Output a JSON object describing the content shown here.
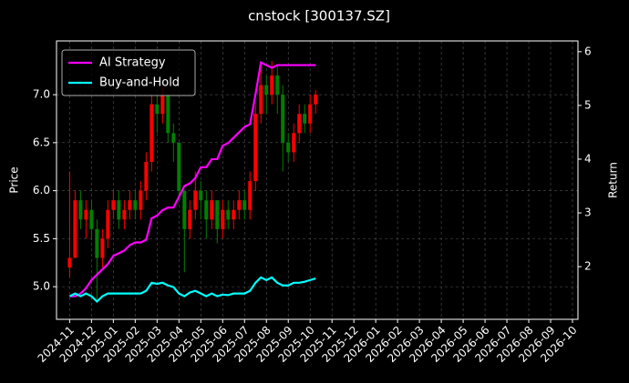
{
  "chart_data": {
    "type": "candlestick",
    "title": "cnstock [300137.SZ]",
    "ylabel": "Price",
    "y2label": "Return",
    "xlim": [
      -0.6,
      23.25
    ],
    "xticks": [
      {
        "value": 0,
        "label": "2024-11"
      },
      {
        "value": 1,
        "label": "2024-12"
      },
      {
        "value": 2,
        "label": "2025-01"
      },
      {
        "value": 3,
        "label": "2025-02"
      },
      {
        "value": 4,
        "label": "2025-03"
      },
      {
        "value": 5,
        "label": "2025-04"
      },
      {
        "value": 6,
        "label": "2025-05"
      },
      {
        "value": 7,
        "label": "2025-06"
      },
      {
        "value": 8,
        "label": "2025-07"
      },
      {
        "value": 9,
        "label": "2025-08"
      },
      {
        "value": 10,
        "label": "2025-09"
      },
      {
        "value": 11,
        "label": "2025-10"
      },
      {
        "value": 12,
        "label": "2025-11"
      },
      {
        "value": 13,
        "label": "2025-12"
      },
      {
        "value": 14,
        "label": "2026-01"
      },
      {
        "value": 15,
        "label": "2026-02"
      },
      {
        "value": 16,
        "label": "2026-03"
      },
      {
        "value": 17,
        "label": "2026-04"
      },
      {
        "value": 18,
        "label": "2026-05"
      },
      {
        "value": 19,
        "label": "2026-06"
      },
      {
        "value": 20,
        "label": "2026-07"
      },
      {
        "value": 21,
        "label": "2026-08"
      },
      {
        "value": 22,
        "label": "2026-09"
      },
      {
        "value": 23,
        "label": "2026-10"
      }
    ],
    "ylim": [
      4.66,
      7.56
    ],
    "yticks": [
      {
        "value": 5,
        "label": "5.0"
      },
      5.5,
      {
        "value": 6,
        "label": "6.0"
      },
      6.5,
      {
        "value": 7,
        "label": "7.0"
      }
    ],
    "y2lim": [
      1.02,
      6.2
    ],
    "y2ticks": [
      2,
      3,
      4,
      5,
      6
    ],
    "grid": true,
    "legend": "upper left",
    "up_color": "#ff0000",
    "down_color": "#008000",
    "x": [
      0,
      0.25,
      0.5,
      0.75,
      1,
      1.25,
      1.5,
      1.75,
      2,
      2.25,
      2.5,
      2.75,
      3,
      3.25,
      3.5,
      3.75,
      4,
      4.25,
      4.5,
      4.75,
      5,
      5.25,
      5.5,
      5.75,
      6,
      6.25,
      6.5,
      6.75,
      7,
      7.25,
      7.5,
      7.75,
      8,
      8.25,
      8.5,
      8.75,
      9,
      9.25,
      9.5,
      9.75,
      10,
      10.25,
      10.5,
      10.75,
      11,
      11.25
    ],
    "open": [
      5.2,
      5.3,
      5.9,
      5.7,
      5.8,
      5.6,
      5.3,
      5.5,
      5.8,
      5.9,
      5.7,
      5.8,
      5.9,
      5.8,
      6.0,
      6.3,
      6.9,
      6.8,
      7.0,
      6.6,
      6.5,
      6.0,
      5.6,
      5.8,
      6.0,
      5.9,
      5.7,
      5.9,
      5.6,
      5.8,
      5.7,
      5.8,
      5.9,
      5.8,
      6.1,
      6.8,
      7.1,
      7.0,
      7.2,
      7.0,
      6.5,
      6.4,
      6.6,
      6.8,
      6.7,
      6.9
    ],
    "high": [
      6.2,
      6.0,
      6.0,
      5.9,
      5.9,
      5.7,
      5.6,
      5.9,
      6.0,
      6.0,
      5.9,
      6.0,
      6.0,
      6.1,
      6.4,
      7.0,
      7.0,
      7.1,
      7.0,
      6.7,
      6.5,
      6.0,
      5.9,
      6.2,
      6.1,
      6.0,
      6.0,
      5.9,
      5.9,
      5.9,
      5.9,
      6.0,
      6.0,
      6.2,
      6.9,
      7.3,
      7.2,
      7.35,
      7.3,
      7.1,
      6.6,
      6.7,
      6.9,
      6.9,
      7.0,
      7.05
    ],
    "low": [
      5.1,
      5.3,
      5.6,
      5.5,
      5.5,
      4.85,
      5.2,
      5.4,
      5.7,
      5.6,
      5.6,
      5.7,
      5.7,
      5.7,
      5.9,
      6.2,
      6.6,
      6.7,
      6.5,
      6.3,
      5.9,
      5.15,
      5.5,
      5.7,
      5.7,
      5.5,
      5.6,
      5.45,
      5.5,
      5.6,
      5.6,
      5.7,
      5.7,
      5.7,
      6.0,
      6.7,
      6.8,
      6.9,
      6.8,
      6.2,
      6.3,
      6.3,
      6.5,
      6.6,
      6.6,
      6.8
    ],
    "close": [
      5.3,
      5.9,
      5.7,
      5.8,
      5.6,
      5.3,
      5.5,
      5.8,
      5.9,
      5.7,
      5.8,
      5.9,
      5.8,
      6.0,
      6.3,
      6.9,
      6.8,
      7.0,
      6.6,
      6.5,
      6.0,
      5.6,
      5.8,
      6.0,
      5.9,
      5.7,
      5.9,
      5.6,
      5.8,
      5.7,
      5.8,
      5.9,
      5.8,
      6.1,
      6.8,
      7.1,
      7.0,
      7.2,
      7.0,
      6.5,
      6.4,
      6.6,
      6.8,
      6.7,
      6.9,
      7.0
    ],
    "series": [
      {
        "name": "AI Strategy",
        "color": "#ff00ff",
        "axis": "y2",
        "values": [
          1.45,
          1.45,
          1.5,
          1.6,
          1.75,
          1.85,
          1.95,
          2.05,
          2.2,
          2.25,
          2.3,
          2.4,
          2.45,
          2.45,
          2.5,
          2.9,
          2.95,
          3.05,
          3.1,
          3.1,
          3.3,
          3.5,
          3.55,
          3.65,
          3.85,
          3.85,
          4.0,
          4.0,
          4.25,
          4.3,
          4.4,
          4.5,
          4.6,
          4.65,
          5.2,
          5.8,
          5.75,
          5.7,
          5.75,
          5.75,
          5.75,
          5.75,
          5.75,
          5.75,
          5.75,
          5.75
        ]
      },
      {
        "name": "Buy-and-Hold",
        "color": "#00ffff",
        "axis": "y2",
        "values": [
          1.45,
          1.5,
          1.45,
          1.5,
          1.45,
          1.35,
          1.45,
          1.5,
          1.5,
          1.5,
          1.5,
          1.5,
          1.5,
          1.5,
          1.55,
          1.7,
          1.68,
          1.7,
          1.65,
          1.62,
          1.5,
          1.45,
          1.52,
          1.55,
          1.5,
          1.45,
          1.5,
          1.45,
          1.48,
          1.47,
          1.5,
          1.5,
          1.5,
          1.55,
          1.7,
          1.8,
          1.75,
          1.8,
          1.7,
          1.65,
          1.65,
          1.7,
          1.7,
          1.72,
          1.75,
          1.78
        ]
      }
    ]
  }
}
